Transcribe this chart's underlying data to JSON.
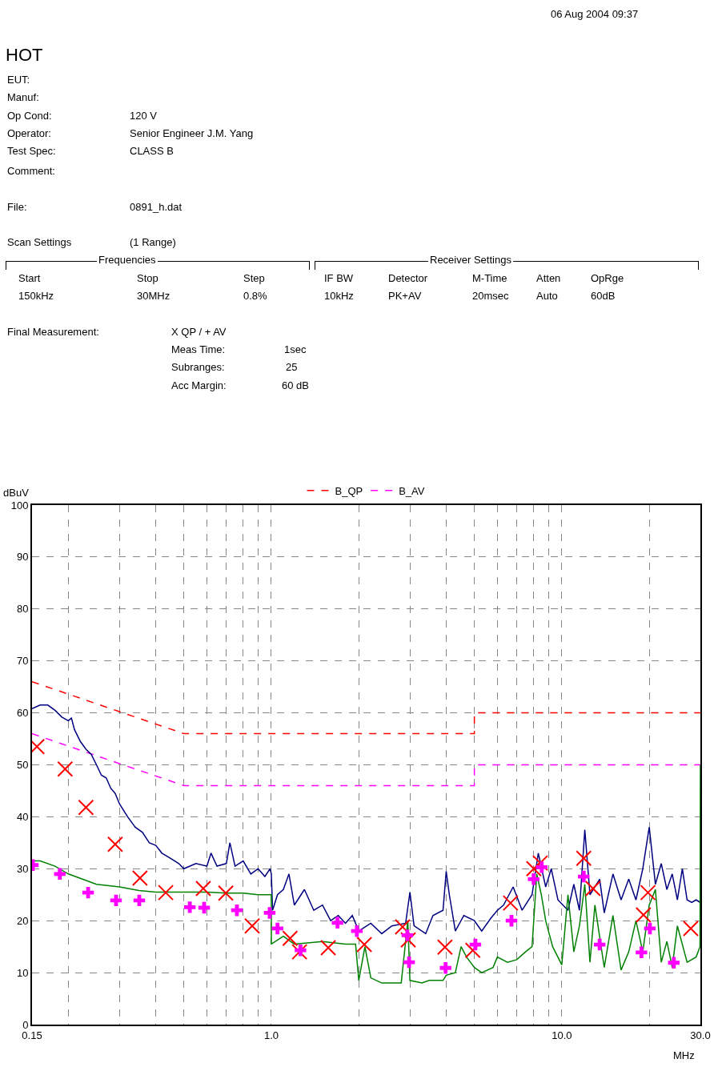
{
  "chart_data": {
    "type": "line",
    "title": "HOT",
    "ylabel": "dBuV",
    "xlabel": "MHz",
    "annotations": [
      "06 Aug 2004   09:37",
      "EUT:",
      "Manuf:",
      "Op Cond:",
      "120 V",
      "Operator:",
      "Senior Engineer J.M. Yang",
      "Test Spec:",
      "CLASS B",
      "Comment:",
      "File:",
      "0891_h.dat",
      "Scan Settings",
      "(1  Range)",
      "Frequencies",
      "Receiver Settings",
      "Start",
      "Stop",
      "Step",
      "IF BW",
      "Detector",
      "M-Time",
      "Atten",
      "OpRge",
      "150kHz",
      "30MHz",
      "0.8%",
      "10kHz",
      "PK+AV",
      "20msec",
      "Auto",
      "60dB",
      "Final Measurement:",
      "X QP / + AV",
      "Meas Time:",
      "1sec",
      "Subranges:",
      "25",
      "Acc Margin:",
      "60 dB"
    ],
    "log": "x",
    "xlim": [
      0.15,
      30
    ],
    "ylim": [
      0,
      100
    ],
    "xticks": [
      {
        "value": 0.15,
        "label": "0.15"
      },
      {
        "value": 0.2,
        "label": null
      },
      {
        "value": 0.3,
        "label": null
      },
      {
        "value": 0.4,
        "label": null
      },
      {
        "value": 0.5,
        "label": null
      },
      {
        "value": 0.6,
        "label": null
      },
      {
        "value": 0.7,
        "label": null
      },
      {
        "value": 0.8,
        "label": null
      },
      {
        "value": 0.9,
        "label": null
      },
      {
        "value": 1,
        "label": "1.0"
      },
      {
        "value": 2,
        "label": null
      },
      {
        "value": 3,
        "label": null
      },
      {
        "value": 4,
        "label": null
      },
      {
        "value": 5,
        "label": null
      },
      {
        "value": 6,
        "label": null
      },
      {
        "value": 7,
        "label": null
      },
      {
        "value": 8,
        "label": null
      },
      {
        "value": 9,
        "label": null
      },
      {
        "value": 10,
        "label": "10.0"
      },
      {
        "value": 20,
        "label": null
      },
      {
        "value": 30,
        "label": "30.0"
      }
    ],
    "yticks": [
      0,
      10,
      20,
      30,
      40,
      50,
      60,
      70,
      80,
      90,
      100
    ],
    "grid": true,
    "legend": "top",
    "series": [
      {
        "name": "B_QP",
        "color": "#ff0000",
        "line_style": "dashed",
        "marker": "none",
        "x": [
          0.15,
          0.5,
          5,
          5,
          30
        ],
        "values": [
          66,
          56,
          56,
          60,
          60
        ]
      },
      {
        "name": "B_AV",
        "color": "#ff00ff",
        "line_style": "dashed",
        "marker": "none",
        "x": [
          0.15,
          0.5,
          5,
          5,
          30
        ],
        "values": [
          56,
          46,
          46,
          50,
          50
        ]
      },
      {
        "color": "#000080",
        "line_style": "solid",
        "marker": "none",
        "x": [
          0.15,
          0.16,
          0.17,
          0.18,
          0.19,
          0.2,
          0.205,
          0.21,
          0.22,
          0.23,
          0.24,
          0.25,
          0.26,
          0.27,
          0.28,
          0.29,
          0.3,
          0.32,
          0.34,
          0.36,
          0.38,
          0.4,
          0.42,
          0.45,
          0.48,
          0.5,
          0.55,
          0.6,
          0.62,
          0.65,
          0.7,
          0.72,
          0.75,
          0.8,
          0.85,
          0.9,
          0.95,
          0.99,
          1.0,
          1.01,
          1.05,
          1.1,
          1.15,
          1.2,
          1.3,
          1.4,
          1.5,
          1.6,
          1.7,
          1.8,
          1.9,
          2.0,
          2.2,
          2.4,
          2.6,
          2.9,
          3.0,
          3.1,
          3.4,
          3.6,
          3.9,
          4.0,
          4.1,
          4.3,
          4.6,
          5.0,
          5.3,
          5.7,
          6.0,
          6.3,
          6.8,
          7.3,
          7.9,
          8.3,
          8.8,
          9.2,
          9.7,
          10.5,
          11,
          11.5,
          12,
          12.5,
          13.5,
          14,
          15,
          16,
          17,
          18,
          19,
          20,
          21,
          22,
          23,
          24,
          25,
          26,
          27,
          28,
          29,
          30
        ],
        "values": [
          60.8,
          61.5,
          61.5,
          60.5,
          59.2,
          58.5,
          59,
          56.8,
          54.5,
          53,
          52,
          50,
          48,
          47.5,
          45.5,
          44.5,
          42.5,
          40,
          38,
          37,
          35,
          34.5,
          33,
          32,
          31,
          30,
          31,
          30.5,
          33,
          30.5,
          31,
          35,
          30.5,
          31.5,
          29,
          30,
          28.5,
          30,
          29,
          22,
          25,
          26,
          29,
          23,
          26,
          22,
          23,
          20,
          21,
          19.5,
          21,
          18,
          19.5,
          17.5,
          19,
          19.5,
          25.5,
          19,
          17.5,
          21,
          22,
          29.5,
          25,
          18,
          21,
          20,
          18,
          20.5,
          22,
          23,
          26.5,
          22,
          25,
          33,
          26.5,
          30,
          24,
          22,
          27,
          22,
          37.5,
          25,
          28,
          21.5,
          29,
          24,
          28,
          24,
          30,
          38,
          27,
          31,
          26,
          29,
          24,
          30,
          24,
          23.5,
          24,
          23.5
        ]
      },
      {
        "color": "#008000",
        "line_style": "solid",
        "marker": "none",
        "x": [
          0.15,
          0.16,
          0.18,
          0.2,
          0.25,
          0.3,
          0.35,
          0.4,
          0.5,
          0.6,
          0.7,
          0.8,
          0.9,
          1.0,
          1.0,
          1.1,
          1.2,
          1.5,
          1.8,
          1.95,
          2.0,
          2.1,
          2.2,
          2.4,
          2.6,
          2.8,
          2.95,
          3.0,
          3.3,
          3.5,
          3.9,
          4.0,
          4.3,
          4.5,
          4.7,
          5.0,
          5.3,
          5.8,
          6.0,
          6.5,
          7.0,
          7.5,
          7.9,
          8.2,
          8.5,
          8.8,
          9.3,
          10,
          10.5,
          11,
          11.5,
          12,
          12.5,
          13,
          14,
          15,
          16,
          17,
          18,
          19,
          20,
          21,
          22,
          23,
          24,
          25,
          27,
          29,
          29.9,
          30
        ],
        "values": [
          31.5,
          31.5,
          30.5,
          29,
          27,
          26.5,
          25.8,
          25.5,
          25.5,
          25.5,
          25.3,
          25.3,
          25,
          25,
          15.5,
          17,
          15.5,
          16,
          15.5,
          15.5,
          8.5,
          15,
          9,
          8,
          8,
          8,
          20,
          8.5,
          8,
          8.5,
          8.5,
          9.5,
          10,
          15,
          13,
          11,
          10,
          11,
          13,
          12,
          12.5,
          14,
          15,
          29,
          25,
          20,
          15,
          11.5,
          25,
          14,
          19,
          27,
          12,
          23,
          11,
          21,
          10.5,
          14,
          20,
          14,
          23,
          26,
          12,
          16,
          11,
          19,
          12,
          13,
          15,
          50
        ]
      },
      {
        "type": "scatter",
        "color": "#ff0000",
        "marker": "x",
        "x": [
          0.156,
          0.195,
          0.23,
          0.29,
          0.353,
          0.433,
          0.583,
          0.697,
          0.859,
          1.16,
          1.25,
          1.57,
          2.09,
          2.83,
          2.96,
          3.96,
          4.94,
          6.66,
          8.01,
          8.43,
          11.9,
          12.8,
          19.1,
          19.8,
          27.8
        ],
        "values": [
          53.5,
          49.2,
          41.8,
          34.7,
          28.2,
          25.4,
          26.2,
          25.3,
          19,
          16.6,
          14,
          14.8,
          15.4,
          18.8,
          16.3,
          14.9,
          14.3,
          23.4,
          30,
          31.1,
          32,
          26.2,
          21.1,
          25.4,
          18.5
        ]
      },
      {
        "type": "scatter",
        "color": "#ff00ff",
        "marker": "cross",
        "x": [
          0.151,
          0.187,
          0.234,
          0.292,
          0.351,
          0.524,
          0.587,
          0.761,
          0.987,
          1.05,
          1.26,
          1.69,
          1.97,
          2.94,
          2.98,
          3.98,
          5.04,
          6.71,
          8.0,
          8.53,
          11.9,
          13.5,
          18.8,
          20.1,
          24.3
        ],
        "values": [
          30.7,
          29,
          25.4,
          23.9,
          23.9,
          22.6,
          22.5,
          22,
          21.5,
          18.5,
          14.3,
          19.6,
          18,
          17.2,
          12,
          10.9,
          15.4,
          20,
          28,
          30.3,
          28.5,
          15.4,
          13.9,
          18.5,
          11.9
        ]
      }
    ]
  }
}
